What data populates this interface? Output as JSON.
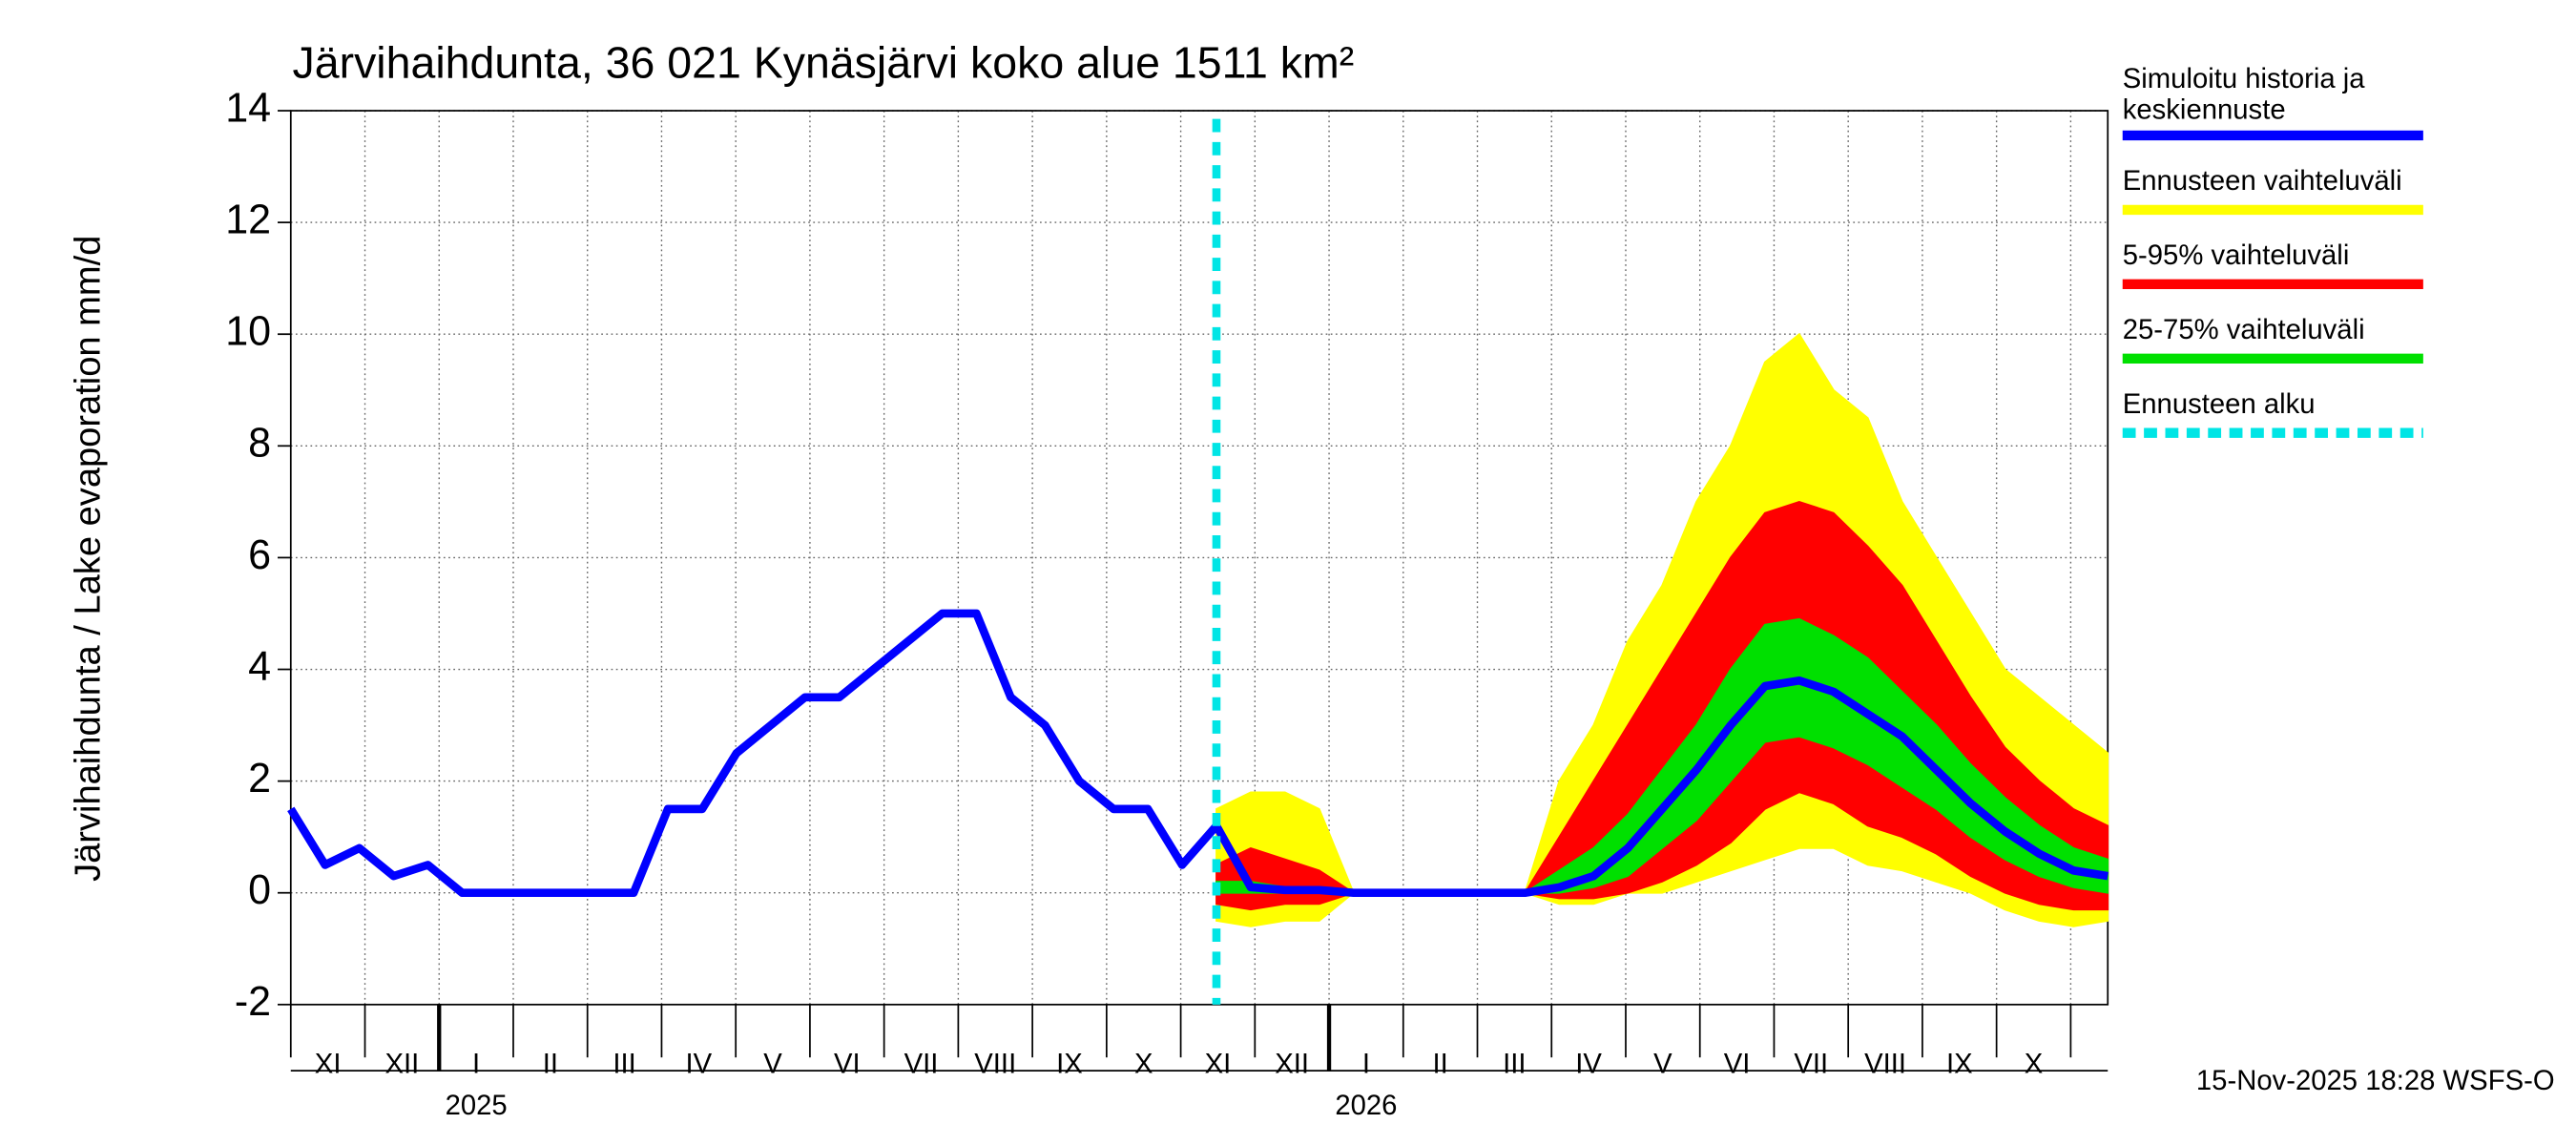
{
  "chart_data": {
    "type": "line",
    "title": "Järvihaihdunta, 36 021 Kynäsjärvi koko alue 1511 km²",
    "y_label": "Järvihaihdunta / Lake evaporation   mm/d",
    "footer": "15-Nov-2025 18:28 WSFS-O",
    "months": [
      "XI",
      "XII",
      "I",
      "II",
      "III",
      "IV",
      "V",
      "VI",
      "VII",
      "VIII",
      "IX",
      "X",
      "XI",
      "XII",
      "I",
      "II",
      "III",
      "IV",
      "V",
      "VI",
      "VII",
      "VIII",
      "IX",
      "X",
      null
    ],
    "years": [
      "2025",
      "2026"
    ],
    "ylim": [
      -2,
      14
    ],
    "yticks": [
      -2,
      0,
      2,
      4,
      6,
      8,
      10,
      12,
      14
    ],
    "grid": true,
    "bands": [
      {
        "name": "Ennusteen vaihteluväli",
        "color": "#ffff00",
        "low": [
          null,
          null,
          null,
          null,
          null,
          null,
          null,
          null,
          null,
          null,
          null,
          null,
          null,
          null,
          null,
          null,
          null,
          null,
          null,
          null,
          null,
          null,
          null,
          null,
          null,
          null,
          null,
          -0.5,
          -0.6,
          -0.5,
          -0.5,
          0,
          0,
          0,
          0,
          0,
          0,
          -0.2,
          -0.2,
          0,
          0,
          0.2,
          0.4,
          0.6,
          0.8,
          0.8,
          0.5,
          0.4,
          0.2,
          0,
          -0.3,
          -0.5,
          -0.6,
          -0.5
        ],
        "high": [
          null,
          null,
          null,
          null,
          null,
          null,
          null,
          null,
          null,
          null,
          null,
          null,
          null,
          null,
          null,
          null,
          null,
          null,
          null,
          null,
          null,
          null,
          null,
          null,
          null,
          null,
          null,
          1.5,
          1.8,
          1.8,
          1.5,
          0,
          0,
          0,
          0,
          0,
          0,
          2,
          3,
          4.5,
          5.5,
          7,
          8,
          9.5,
          10,
          9,
          8.5,
          7,
          6,
          5,
          4,
          3.5,
          3,
          2.5
        ]
      },
      {
        "name": "5-95% vaihteluväli",
        "color": "#ff0000",
        "low": [
          null,
          null,
          null,
          null,
          null,
          null,
          null,
          null,
          null,
          null,
          null,
          null,
          null,
          null,
          null,
          null,
          null,
          null,
          null,
          null,
          null,
          null,
          null,
          null,
          null,
          null,
          null,
          -0.2,
          -0.3,
          -0.2,
          -0.2,
          0,
          0,
          0,
          0,
          0,
          0,
          -0.1,
          -0.1,
          0,
          0.2,
          0.5,
          0.9,
          1.5,
          1.8,
          1.6,
          1.2,
          1,
          0.7,
          0.3,
          0,
          -0.2,
          -0.3,
          -0.3
        ],
        "high": [
          null,
          null,
          null,
          null,
          null,
          null,
          null,
          null,
          null,
          null,
          null,
          null,
          null,
          null,
          null,
          null,
          null,
          null,
          null,
          null,
          null,
          null,
          null,
          null,
          null,
          null,
          null,
          0.5,
          0.8,
          0.6,
          0.4,
          0,
          0,
          0,
          0,
          0,
          0,
          1,
          2,
          3,
          4,
          5,
          6,
          6.8,
          7,
          6.8,
          6.2,
          5.5,
          4.5,
          3.5,
          2.6,
          2,
          1.5,
          1.2
        ]
      },
      {
        "name": "25-75% vaihteluväli",
        "color": "#00e000",
        "low": [
          null,
          null,
          null,
          null,
          null,
          null,
          null,
          null,
          null,
          null,
          null,
          null,
          null,
          null,
          null,
          null,
          null,
          null,
          null,
          null,
          null,
          null,
          null,
          null,
          null,
          null,
          null,
          0,
          0,
          0,
          0,
          0,
          0,
          0,
          0,
          0,
          0,
          0,
          0.1,
          0.3,
          0.8,
          1.3,
          2,
          2.7,
          2.8,
          2.6,
          2.3,
          1.9,
          1.5,
          1,
          0.6,
          0.3,
          0.1,
          0
        ],
        "high": [
          null,
          null,
          null,
          null,
          null,
          null,
          null,
          null,
          null,
          null,
          null,
          null,
          null,
          null,
          null,
          null,
          null,
          null,
          null,
          null,
          null,
          null,
          null,
          null,
          null,
          null,
          null,
          0.2,
          0.2,
          0.1,
          0.1,
          0,
          0,
          0,
          0,
          0,
          0,
          0.4,
          0.8,
          1.4,
          2.2,
          3,
          4,
          4.8,
          4.9,
          4.6,
          4.2,
          3.6,
          3,
          2.3,
          1.7,
          1.2,
          0.8,
          0.6
        ]
      }
    ],
    "series": [
      {
        "name": "Simuloitu historia ja keskiennuste",
        "color": "#0000ff",
        "values": [
          1.5,
          0.5,
          0.8,
          0.3,
          0.5,
          0,
          0,
          0,
          0,
          0,
          0,
          1.5,
          1.5,
          2.5,
          3,
          3.5,
          3.5,
          4,
          4.5,
          5,
          5,
          3.5,
          3,
          2,
          1.5,
          1.5,
          0.5,
          1.2,
          0.1,
          0.05,
          0.05,
          0,
          0,
          0,
          0,
          0,
          0,
          0.1,
          0.3,
          0.8,
          1.5,
          2.2,
          3,
          3.7,
          3.8,
          3.6,
          3.2,
          2.8,
          2.2,
          1.6,
          1.1,
          0.7,
          0.4,
          0.3
        ]
      }
    ],
    "forecast_start": {
      "name": "Ennusteen alku",
      "color": "#00e5e5"
    }
  }
}
